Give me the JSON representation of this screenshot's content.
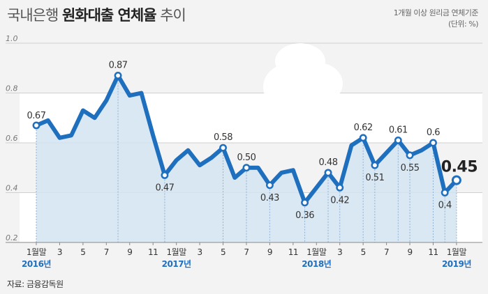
{
  "title": {
    "part1": "국내은행 ",
    "part2": "원화대출 연체율",
    "part3": " 추이"
  },
  "note": {
    "line1": "1개월 이상 원리금 연체기준",
    "line2": "(단위: %)"
  },
  "source": "자료: 금융감독원",
  "colors": {
    "line": "#1f6fbf",
    "fill": "#d4e4f1",
    "accent_year": "#1f6fbf",
    "background": "#f3f3f3"
  },
  "chart_data": {
    "type": "area",
    "title": "국내은행 원화대출 연체율 추이",
    "ylim": [
      0.2,
      1.0
    ],
    "yticks": [
      "0.2",
      "0.4",
      "0.6",
      "0.8",
      "1.0"
    ],
    "x": [
      "2016-01",
      "2016-02",
      "2016-03",
      "2016-04",
      "2016-05",
      "2016-06",
      "2016-07",
      "2016-08",
      "2016-09",
      "2016-10",
      "2016-11",
      "2016-12",
      "2017-01",
      "2017-02",
      "2017-03",
      "2017-04",
      "2017-05",
      "2017-06",
      "2017-07",
      "2017-08",
      "2017-09",
      "2017-10",
      "2017-11",
      "2017-12",
      "2018-01",
      "2018-02",
      "2018-03",
      "2018-04",
      "2018-05",
      "2018-06",
      "2018-07",
      "2018-08",
      "2018-09",
      "2018-10",
      "2018-11",
      "2018-12",
      "2019-01"
    ],
    "values": [
      0.67,
      0.69,
      0.62,
      0.63,
      0.73,
      0.7,
      0.77,
      0.87,
      0.79,
      0.8,
      0.63,
      0.47,
      0.53,
      0.57,
      0.51,
      0.54,
      0.58,
      0.46,
      0.5,
      0.5,
      0.43,
      0.48,
      0.49,
      0.36,
      0.42,
      0.48,
      0.42,
      0.59,
      0.62,
      0.51,
      0.56,
      0.61,
      0.55,
      0.57,
      0.6,
      0.4,
      0.45
    ],
    "xtick_labels": [
      "1월말",
      "3",
      "5",
      "7",
      "9",
      "11",
      "1월말",
      "3",
      "5",
      "7",
      "9",
      "11",
      "1월말",
      "3",
      "5",
      "7",
      "9",
      "11",
      "1월말"
    ],
    "year_labels": [
      "2016년",
      "2017년",
      "2018년",
      "2019년"
    ],
    "data_labels": [
      {
        "index": 0,
        "text": "0.67"
      },
      {
        "index": 7,
        "text": "0.87"
      },
      {
        "index": 11,
        "text": "0.47"
      },
      {
        "index": 16,
        "text": "0.58"
      },
      {
        "index": 18,
        "text": "0.50"
      },
      {
        "index": 20,
        "text": "0.43"
      },
      {
        "index": 23,
        "text": "0.36"
      },
      {
        "index": 25,
        "text": "0.48"
      },
      {
        "index": 26,
        "text": "0.42"
      },
      {
        "index": 28,
        "text": "0.62"
      },
      {
        "index": 29,
        "text": "0.51"
      },
      {
        "index": 31,
        "text": "0.61"
      },
      {
        "index": 32,
        "text": "0.55"
      },
      {
        "index": 34,
        "text": "0.6"
      },
      {
        "index": 35,
        "text": "0.4"
      },
      {
        "index": 36,
        "text": "0.45"
      }
    ],
    "markers": [
      0,
      7,
      11,
      16,
      18,
      20,
      23,
      25,
      26,
      28,
      29,
      31,
      32,
      34,
      35,
      36
    ],
    "grid": true
  }
}
